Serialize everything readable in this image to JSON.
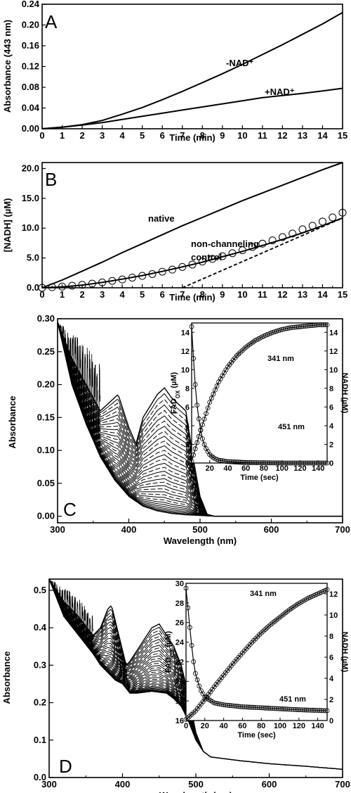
{
  "chart_data": [
    {
      "panel": "A",
      "type": "line",
      "xlabel": "Time (min)",
      "ylabel": "Absorbance (443 nm)",
      "xlim": [
        0,
        15
      ],
      "ylim": [
        0,
        0.24
      ],
      "xticks": [
        "0",
        "1",
        "2",
        "3",
        "4",
        "5",
        "6",
        "7",
        "8",
        "9",
        "10",
        "11",
        "12",
        "13",
        "14",
        "15"
      ],
      "yticks": [
        "0.00",
        "0.04",
        "0.08",
        "0.12",
        "0.16",
        "0.20",
        "0.24"
      ],
      "series": [
        {
          "name": "-NAD⁺",
          "x": [
            0,
            1,
            2,
            3,
            4,
            5,
            6,
            7,
            8,
            9,
            10,
            11,
            12,
            13,
            14,
            15
          ],
          "values": [
            0,
            0.003,
            0.008,
            0.016,
            0.028,
            0.041,
            0.056,
            0.072,
            0.089,
            0.106,
            0.124,
            0.143,
            0.162,
            0.182,
            0.202,
            0.224
          ]
        },
        {
          "name": "+NAD⁺",
          "x": [
            0,
            1,
            2,
            3,
            4,
            5,
            6,
            7,
            8,
            9,
            10,
            11,
            12,
            13,
            14,
            15
          ],
          "values": [
            0,
            0.003,
            0.007,
            0.012,
            0.018,
            0.024,
            0.03,
            0.036,
            0.042,
            0.048,
            0.054,
            0.06,
            0.064,
            0.068,
            0.073,
            0.078
          ]
        }
      ]
    },
    {
      "panel": "B",
      "type": "line",
      "xlabel": "Time (min)",
      "ylabel": "[NADH] (µM)",
      "xlim": [
        0,
        15
      ],
      "ylim": [
        0,
        21
      ],
      "xticks": [
        "0",
        "1",
        "2",
        "3",
        "4",
        "5",
        "6",
        "7",
        "8",
        "9",
        "10",
        "11",
        "12",
        "13",
        "14",
        "15"
      ],
      "yticks": [
        "0.0",
        "5.0",
        "10.0",
        "15.0",
        "20.0"
      ],
      "annotations": [
        "native",
        "non-channeling",
        "control"
      ],
      "series": [
        {
          "name": "native",
          "x": [
            0,
            1,
            2,
            3,
            4,
            5,
            6,
            7,
            8,
            9,
            10,
            11,
            12,
            13,
            14,
            15
          ],
          "values": [
            0,
            1.3,
            2.8,
            4.3,
            5.9,
            7.4,
            8.9,
            10.4,
            11.8,
            13.2,
            14.6,
            15.9,
            17.2,
            18.5,
            19.8,
            21.0
          ]
        },
        {
          "name": "non-channeling control",
          "x": [
            0,
            1,
            2,
            3,
            4,
            5,
            6,
            7,
            8,
            9,
            10,
            11,
            12,
            13,
            14,
            15
          ],
          "values": [
            0,
            0.15,
            0.45,
            0.9,
            1.45,
            2.05,
            2.75,
            3.5,
            4.3,
            5.2,
            6.1,
            7.1,
            8.1,
            9.2,
            10.4,
            11.7
          ]
        },
        {
          "name": "non-channeling control (circles)",
          "x": [
            0,
            0.5,
            1,
            1.5,
            2,
            2.5,
            3,
            3.5,
            4,
            4.5,
            5,
            5.5,
            6,
            6.5,
            7,
            7.5,
            8,
            8.5,
            9,
            9.5,
            10,
            10.5,
            11,
            11.5,
            12,
            12.5,
            13,
            13.5,
            14,
            14.5,
            15
          ],
          "values": [
            0,
            0.1,
            0.2,
            0.35,
            0.5,
            0.7,
            0.9,
            1.15,
            1.4,
            1.7,
            2.0,
            2.3,
            2.7,
            3.05,
            3.5,
            3.9,
            4.4,
            4.85,
            5.3,
            5.8,
            6.3,
            6.85,
            7.4,
            7.95,
            8.5,
            9.1,
            9.8,
            10.4,
            11.1,
            11.8,
            12.6
          ]
        },
        {
          "name": "linear extrapolation",
          "x": [
            7,
            15
          ],
          "values": [
            0,
            11.7
          ]
        }
      ]
    },
    {
      "panel": "C",
      "type": "line",
      "xlabel": "Wavelength (nm)",
      "ylabel": "Absorbance",
      "xlim": [
        300,
        700
      ],
      "ylim": [
        -0.01,
        0.3
      ],
      "xticks": [
        "300",
        "400",
        "500",
        "600",
        "700"
      ],
      "yticks": [
        "0.00",
        "0.05",
        "0.10",
        "0.15",
        "0.20",
        "0.25",
        "0.30"
      ],
      "spectra_top": {
        "wavelength": [
          300,
          320,
          340,
          360,
          380,
          385,
          400,
          410,
          420,
          440,
          450,
          460,
          470,
          480,
          490,
          500,
          510,
          520,
          560,
          600,
          700
        ],
        "values": [
          0.295,
          0.24,
          0.2,
          0.16,
          0.18,
          0.185,
          0.135,
          0.11,
          0.15,
          0.185,
          0.195,
          0.18,
          0.17,
          0.16,
          0.09,
          0.03,
          0.003,
          0,
          0,
          0,
          0
        ]
      },
      "spectra_bottom": {
        "wavelength": [
          300,
          320,
          340,
          360,
          380,
          400,
          420,
          440,
          460,
          480,
          500,
          520,
          700
        ],
        "values": [
          0.295,
          0.2,
          0.14,
          0.09,
          0.055,
          0.03,
          0.015,
          0.008,
          0.004,
          0.002,
          0.001,
          0,
          0
        ]
      },
      "inset": {
        "xlabel": "Time (sec)",
        "ylabel_left": "FAD",
        "ylabel_left_sub": "OX",
        "ylabel_left_unit": " (µM)",
        "ylabel_right": "NADH (µM)",
        "xticks": [
          "0",
          "20",
          "40",
          "60",
          "80",
          "100",
          "120",
          "140"
        ],
        "yticks_left": [
          "0",
          "2",
          "4",
          "6",
          "8",
          "10",
          "12",
          "14"
        ],
        "yticks_right": [
          "0",
          "2",
          "4",
          "6",
          "8",
          "10",
          "12",
          "14"
        ],
        "annotations": [
          "341 nm",
          "451 nm"
        ],
        "series": [
          {
            "name": "341 nm",
            "x": [
              0,
              10,
              20,
              30,
              40,
              50,
              60,
              70,
              80,
              90,
              100,
              110,
              120,
              130,
              140,
              150
            ],
            "values": [
              0.2,
              3.5,
              6.5,
              8.7,
              10.3,
              11.5,
              12.4,
              13.1,
              13.6,
              14.0,
              14.3,
              14.5,
              14.6,
              14.7,
              14.8,
              14.8
            ]
          },
          {
            "name": "451 nm",
            "x": [
              0,
              3,
              6,
              9,
              12,
              15,
              20,
              25,
              30,
              40,
              60,
              80,
              100,
              120,
              150
            ],
            "values": [
              14.6,
              9.5,
              6.2,
              4.0,
              2.6,
              1.7,
              0.9,
              0.5,
              0.3,
              0.15,
              0.05,
              0.02,
              0,
              0,
              0
            ]
          }
        ]
      }
    },
    {
      "panel": "D",
      "type": "line",
      "xlabel": "Wavelength (nm)",
      "ylabel": "Absorbance",
      "xlim": [
        300,
        700
      ],
      "ylim": [
        0.0,
        0.53
      ],
      "xticks": [
        "300",
        "400",
        "500",
        "600",
        "700"
      ],
      "yticks": [
        "0.0",
        "0.1",
        "0.2",
        "0.3",
        "0.4",
        "0.5"
      ],
      "spectra_top": {
        "wavelength": [
          300,
          320,
          340,
          360,
          370,
          380,
          385,
          395,
          405,
          410,
          420,
          430,
          440,
          450,
          460,
          470,
          480,
          490,
          500,
          510,
          520,
          560,
          600,
          650,
          700
        ],
        "values": [
          0.53,
          0.47,
          0.43,
          0.38,
          0.4,
          0.45,
          0.46,
          0.38,
          0.3,
          0.31,
          0.34,
          0.37,
          0.4,
          0.41,
          0.38,
          0.35,
          0.3,
          0.22,
          0.12,
          0.07,
          0.055,
          0.045,
          0.037,
          0.03,
          0.022
        ]
      },
      "spectra_bottom": {
        "wavelength": [
          300,
          320,
          340,
          360,
          370,
          380,
          390,
          400,
          410,
          420,
          440,
          460,
          470,
          480,
          490,
          500,
          510,
          520,
          560,
          600,
          650,
          700
        ],
        "values": [
          0.53,
          0.43,
          0.38,
          0.33,
          0.3,
          0.28,
          0.26,
          0.25,
          0.225,
          0.225,
          0.23,
          0.225,
          0.21,
          0.19,
          0.15,
          0.1,
          0.07,
          0.055,
          0.045,
          0.037,
          0.03,
          0.022
        ]
      },
      "inset": {
        "xlabel": "Time (sec)",
        "ylabel_left": "FAD",
        "ylabel_left_sub": "OX",
        "ylabel_left_unit": " (µM)",
        "ylabel_right": "NADH (µM)",
        "xticks": [
          "0",
          "20",
          "40",
          "60",
          "80",
          "100",
          "120",
          "140"
        ],
        "yticks_left": [
          "16",
          "18",
          "20",
          "22",
          "24",
          "26",
          "28",
          "30"
        ],
        "yticks_right": [
          "0",
          "2",
          "4",
          "6",
          "8",
          "10",
          "12"
        ],
        "annotations": [
          "341 nm",
          "451 nm"
        ],
        "series": [
          {
            "name": "341 nm",
            "x": [
              0,
              10,
              20,
              30,
              40,
              50,
              60,
              70,
              80,
              90,
              100,
              110,
              120,
              130,
              140,
              150
            ],
            "values": [
              0.1,
              0.9,
              2.0,
              3.2,
              4.3,
              5.4,
              6.4,
              7.4,
              8.3,
              9.1,
              9.8,
              10.5,
              11.1,
              11.6,
              12.0,
              12.4
            ]
          },
          {
            "name": "451 nm",
            "x": [
              0,
              2,
              5,
              8,
              10,
              15,
              20,
              30,
              40,
              60,
              80,
              100,
              120,
              150
            ],
            "values": [
              29.5,
              27.5,
              24.5,
              22.0,
              20.8,
              19.2,
              18.4,
              17.8,
              17.6,
              17.4,
              17.3,
              17.2,
              17.1,
              17.0
            ]
          }
        ]
      }
    }
  ]
}
